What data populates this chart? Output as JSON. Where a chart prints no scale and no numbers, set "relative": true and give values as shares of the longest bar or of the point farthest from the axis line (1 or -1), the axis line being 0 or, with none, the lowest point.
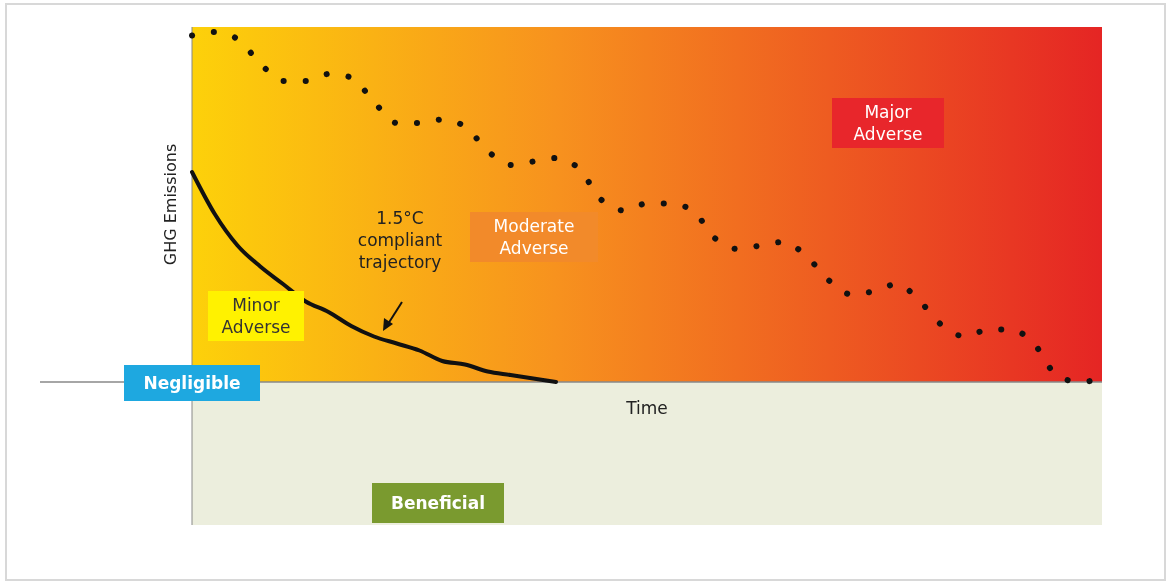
{
  "chart_data": {
    "type": "line",
    "relative": true,
    "xlabel": "Time",
    "ylabel": "GHG Emissions",
    "categories": [
      null,
      null,
      null,
      null,
      null,
      null,
      null,
      null,
      null,
      null,
      null,
      null,
      null,
      null,
      null,
      null,
      null,
      null,
      null,
      null,
      null,
      null,
      null,
      null,
      null,
      null,
      null,
      null,
      null,
      null,
      null,
      null,
      null,
      null,
      null,
      null,
      null,
      null,
      null,
      null,
      null
    ],
    "series": [
      {
        "color": "#111111",
        "line_style": "dotted",
        "values": [
          0.99,
          1.0,
          0.98,
          0.91,
          0.86,
          0.86,
          0.88,
          0.87,
          0.8,
          0.74,
          0.74,
          0.75,
          0.73,
          0.66,
          0.62,
          0.63,
          0.64,
          0.61,
          0.52,
          0.49,
          0.51,
          0.51,
          0.49,
          0.41,
          0.38,
          0.39,
          0.4,
          0.36,
          0.29,
          0.25,
          0.26,
          0.28,
          0.23,
          0.16,
          0.13,
          0.15,
          0.15,
          0.11,
          0.02,
          0,
          0.01
        ]
      },
      {
        "name": "1.5°C compliant trajectory",
        "color": "#111111",
        "line_style": "solid",
        "values": [
          0.6,
          0.48,
          0.39,
          0.33,
          0.28,
          0.23,
          0.2,
          0.16,
          0.13,
          0.11,
          0.09,
          0.06,
          0.05,
          0.03,
          0.02,
          0.01,
          0,
          null,
          null,
          null,
          null,
          null,
          null,
          null,
          null,
          null,
          null,
          null,
          null,
          null,
          null,
          null,
          null,
          null,
          null,
          null,
          null,
          null,
          null,
          null,
          null
        ]
      }
    ],
    "annotations": [
      "Major\nAdverse",
      "Moderate\nAdverse",
      "Minor\nAdverse",
      "Negligible",
      "Beneficial"
    ],
    "grid": false,
    "marker": "none"
  }
}
